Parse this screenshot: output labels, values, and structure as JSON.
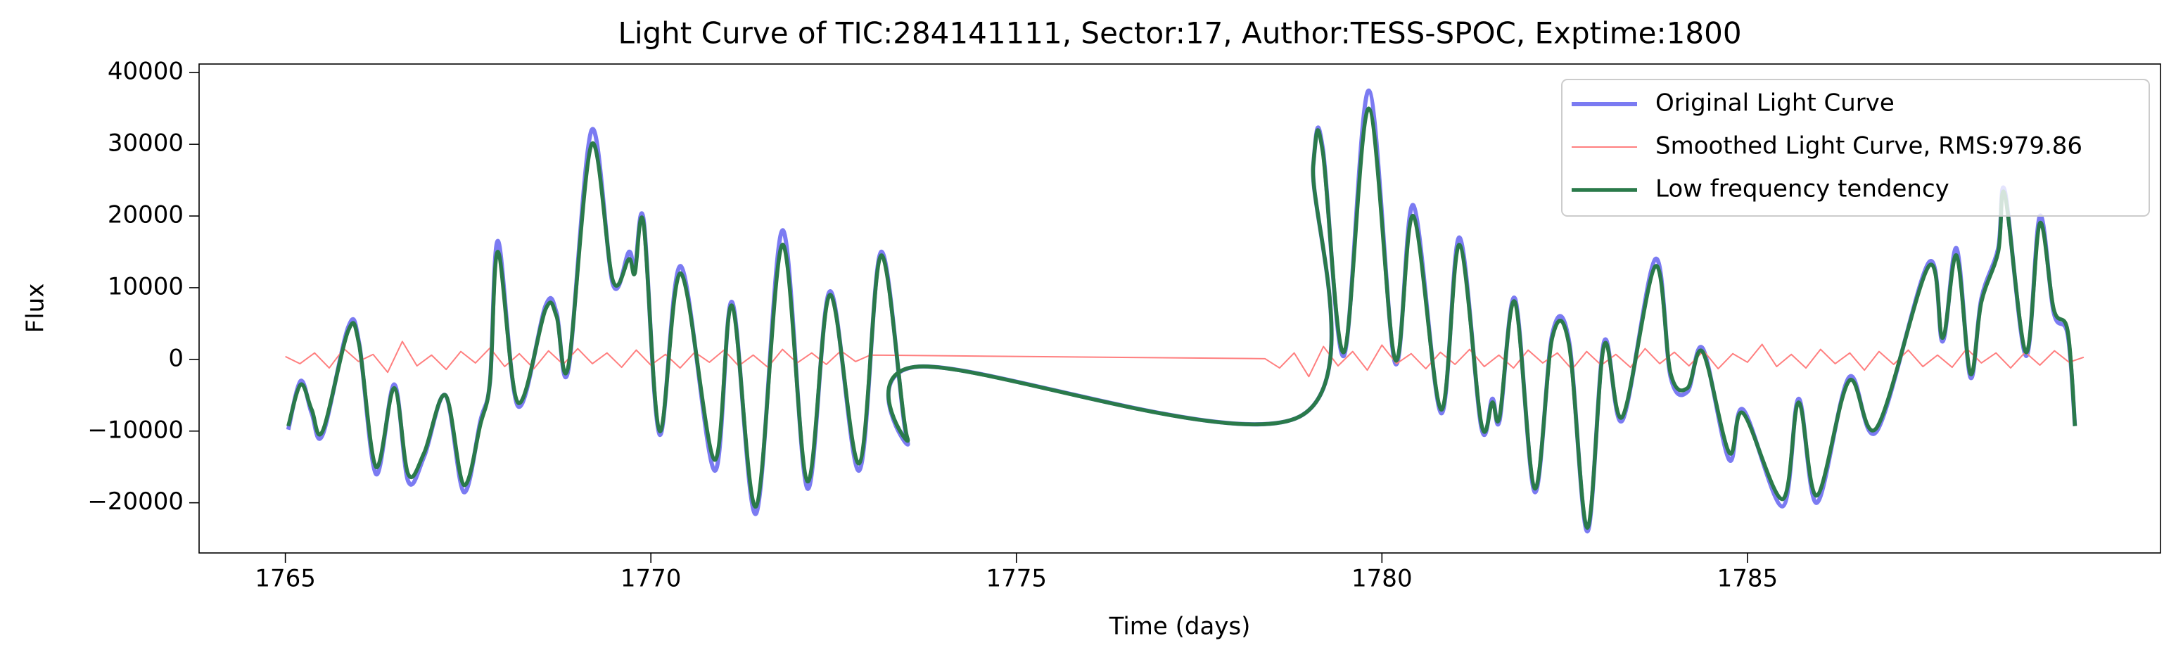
{
  "chart_data": {
    "type": "line",
    "title": "Light Curve of TIC:284141111, Sector:17, Author:TESS-SPOC, Exptime:1800",
    "xlabel": "Time (days)",
    "ylabel": "Flux",
    "xlim": [
      1763.82,
      1790.65
    ],
    "ylim": [
      -27000,
      41200
    ],
    "xticks": [
      1765,
      1770,
      1775,
      1780,
      1785
    ],
    "yticks": [
      {
        "value": -20000,
        "label": "−20000"
      },
      {
        "value": -10000,
        "label": "−10000"
      },
      0,
      10000,
      20000,
      30000,
      40000
    ],
    "grid": false,
    "legend": "upper right",
    "series": [
      {
        "name": "Original Light Curve",
        "color": "#7b7bf2",
        "linewidth": 6,
        "smooth": true,
        "x": [
          1765.04,
          1765.21,
          1765.36,
          1765.51,
          1765.86,
          1766.01,
          1766.24,
          1766.49,
          1766.68,
          1766.9,
          1767.19,
          1767.44,
          1767.67,
          1767.8,
          1767.91,
          1768.18,
          1768.56,
          1768.71,
          1768.87,
          1769.19,
          1769.48,
          1769.7,
          1769.78,
          1769.9,
          1770.12,
          1770.41,
          1770.87,
          1771.11,
          1771.44,
          1771.8,
          1772.14,
          1772.45,
          1772.85,
          1773.15,
          1773.51,
          1773.67,
          1778.87,
          1779.06,
          1779.19,
          1779.48,
          1779.82,
          1780.18,
          1780.43,
          1780.81,
          1781.06,
          1781.36,
          1781.51,
          1781.61,
          1781.82,
          1782.09,
          1782.33,
          1782.56,
          1782.81,
          1783.04,
          1783.29,
          1783.74,
          1783.95,
          1784.18,
          1784.39,
          1784.75,
          1784.94,
          1785.48,
          1785.7,
          1785.95,
          1786.39,
          1786.77,
          1787.48,
          1787.67,
          1787.86,
          1788.05,
          1788.2,
          1788.43,
          1788.52,
          1788.81,
          1789.0,
          1789.19,
          1789.38,
          1789.48
        ],
        "values": [
          -9800,
          -3000,
          -7500,
          -10500,
          4500,
          2200,
          -16000,
          -3500,
          -17000,
          -13500,
          -5000,
          -18500,
          -8500,
          -3000,
          16500,
          -6500,
          7500,
          6500,
          -1500,
          32000,
          10500,
          15000,
          12500,
          19500,
          -10500,
          13000,
          -15500,
          8000,
          -21500,
          18000,
          -18000,
          9500,
          -15500,
          15000,
          -11500,
          -1000,
          -8000,
          27000,
          29500,
          500,
          37500,
          -500,
          21500,
          -7500,
          17000,
          -9500,
          -5500,
          -8500,
          8500,
          -18500,
          3500,
          2500,
          -24000,
          2500,
          -8500,
          14000,
          -2500,
          -4500,
          1500,
          -14000,
          -7000,
          -20500,
          -5500,
          -20000,
          -2500,
          -10000,
          13500,
          2500,
          15500,
          -2500,
          8500,
          15500,
          23500,
          500,
          20000,
          6500,
          3500,
          -9300
        ]
      },
      {
        "name": "Smoothed Light Curve, RMS:979.86",
        "color": "#ff7f7f",
        "linewidth": 2,
        "smooth": false,
        "x": [
          1765.0,
          1765.2,
          1765.4,
          1765.6,
          1765.8,
          1766.0,
          1766.2,
          1766.4,
          1766.6,
          1766.8,
          1767.0,
          1767.2,
          1767.4,
          1767.6,
          1767.8,
          1768.0,
          1768.2,
          1768.4,
          1768.6,
          1768.8,
          1769.0,
          1769.2,
          1769.4,
          1769.6,
          1769.8,
          1770.0,
          1770.2,
          1770.4,
          1770.6,
          1770.8,
          1771.0,
          1771.2,
          1771.4,
          1771.6,
          1771.8,
          1772.0,
          1772.2,
          1772.4,
          1772.6,
          1772.8,
          1773.0,
          1778.4,
          1778.6,
          1778.8,
          1779.0,
          1779.2,
          1779.4,
          1779.6,
          1779.8,
          1780.0,
          1780.2,
          1780.4,
          1780.6,
          1780.8,
          1781.0,
          1781.2,
          1781.4,
          1781.6,
          1781.8,
          1782.0,
          1782.2,
          1782.4,
          1782.6,
          1782.8,
          1783.0,
          1783.2,
          1783.4,
          1783.6,
          1783.8,
          1784.0,
          1784.2,
          1784.4,
          1784.6,
          1784.8,
          1785.0,
          1785.2,
          1785.4,
          1785.6,
          1785.8,
          1786.0,
          1786.2,
          1786.4,
          1786.6,
          1786.8,
          1787.0,
          1787.2,
          1787.4,
          1787.6,
          1787.8,
          1788.0,
          1788.2,
          1788.4,
          1788.6,
          1788.8,
          1789.0,
          1789.2,
          1789.4,
          1789.6
        ],
        "values": [
          400,
          -600,
          900,
          -1200,
          1500,
          -300,
          700,
          -1800,
          2500,
          -900,
          600,
          -1400,
          1100,
          -500,
          1600,
          -1000,
          800,
          -1300,
          1200,
          -700,
          1500,
          -600,
          900,
          -1100,
          1300,
          -800,
          700,
          -1200,
          1000,
          -400,
          1300,
          -900,
          600,
          -1100,
          1400,
          -500,
          900,
          -700,
          1200,
          -300,
          600,
          100,
          -1200,
          900,
          -2400,
          1800,
          -900,
          1100,
          -1500,
          2000,
          -600,
          800,
          -1300,
          1000,
          -700,
          1400,
          -1000,
          600,
          -1200,
          1300,
          -500,
          900,
          -1400,
          1100,
          -800,
          700,
          -1100,
          1500,
          -600,
          1000,
          -900,
          1200,
          -1300,
          800,
          -400,
          2100,
          -1000,
          700,
          -1200,
          1400,
          -600,
          900,
          -1500,
          1100,
          -700,
          1300,
          -1000,
          600,
          -1100,
          1500,
          -500,
          900,
          -1200,
          1000,
          -800,
          1200,
          -400,
          300
        ]
      },
      {
        "name": "Low frequency tendency",
        "color": "#2a7a4a",
        "linewidth": 5.5,
        "smooth": true,
        "x": [
          1765.04,
          1765.21,
          1765.36,
          1765.51,
          1765.86,
          1766.01,
          1766.24,
          1766.49,
          1766.68,
          1766.9,
          1767.19,
          1767.44,
          1767.67,
          1767.8,
          1767.91,
          1768.18,
          1768.56,
          1768.71,
          1768.87,
          1769.19,
          1769.48,
          1769.7,
          1769.78,
          1769.9,
          1770.12,
          1770.41,
          1770.87,
          1771.11,
          1771.44,
          1771.8,
          1772.14,
          1772.45,
          1772.85,
          1773.15,
          1773.51,
          1773.67,
          1778.87,
          1779.06,
          1779.19,
          1779.48,
          1779.82,
          1780.18,
          1780.43,
          1780.81,
          1781.06,
          1781.36,
          1781.51,
          1781.61,
          1781.82,
          1782.09,
          1782.33,
          1782.56,
          1782.81,
          1783.04,
          1783.29,
          1783.74,
          1783.95,
          1784.18,
          1784.39,
          1784.75,
          1784.94,
          1785.48,
          1785.7,
          1785.95,
          1786.39,
          1786.77,
          1787.48,
          1787.67,
          1787.86,
          1788.05,
          1788.2,
          1788.43,
          1788.52,
          1788.81,
          1789.0,
          1789.19,
          1789.38,
          1789.48
        ],
        "values": [
          -9300,
          -3500,
          -7000,
          -10000,
          4000,
          2000,
          -15000,
          -4000,
          -16000,
          -13000,
          -5000,
          -17500,
          -9000,
          -3000,
          15000,
          -6000,
          7000,
          6000,
          -1000,
          30000,
          11000,
          14000,
          12000,
          19000,
          -10000,
          12000,
          -14000,
          7500,
          -20500,
          16000,
          -17000,
          9000,
          -14500,
          14500,
          -11000,
          -1000,
          -8000,
          27000,
          29000,
          1000,
          35000,
          0,
          20000,
          -7000,
          16000,
          -9000,
          -6000,
          -8000,
          8000,
          -18000,
          3000,
          2000,
          -23500,
          2000,
          -8000,
          13000,
          -2000,
          -4000,
          1000,
          -13000,
          -7500,
          -19500,
          -6000,
          -19000,
          -3000,
          -9500,
          13000,
          3000,
          14500,
          -2000,
          8000,
          15000,
          23000,
          1000,
          19000,
          7000,
          4000,
          -9300
        ]
      }
    ]
  }
}
